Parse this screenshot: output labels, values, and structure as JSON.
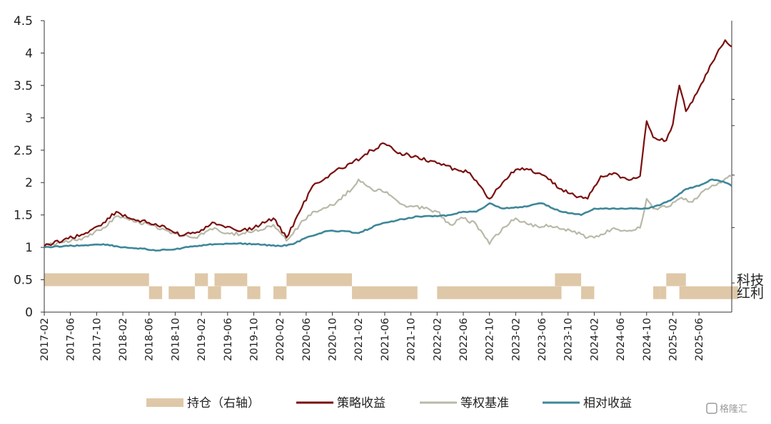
{
  "chart_data": {
    "type": "line",
    "title": "",
    "xlabel": "",
    "ylabel": "",
    "ylim": [
      0,
      4.5
    ],
    "yticks": [
      "0",
      "0.5",
      "1",
      "1.5",
      "2",
      "2.5",
      "3",
      "3.5",
      "4",
      "4.5"
    ],
    "x_range": [
      "2017-02",
      "2025-11"
    ],
    "x_ticks": [
      "2017-02",
      "2017-06",
      "2017-10",
      "2018-02",
      "2018-06",
      "2018-10",
      "2019-02",
      "2019-06",
      "2019-10",
      "2020-02",
      "2020-06",
      "2020-10",
      "2021-02",
      "2021-06",
      "2021-10",
      "2022-02",
      "2022-06",
      "2022-10",
      "2023-02",
      "2023-06",
      "2023-10",
      "2024-02",
      "2024-06",
      "2024-10",
      "2025-02",
      "2025-06"
    ],
    "right_axis_labels": [
      "科技",
      "红利"
    ],
    "legend_position": "bottom",
    "legend": [
      {
        "key": "position",
        "label": "持仓（右轴）",
        "color": "#DFC8A8",
        "marker": "bar"
      },
      {
        "key": "strategy",
        "label": "策略收益",
        "color": "#7A0E0E",
        "marker": "line"
      },
      {
        "key": "benchmark",
        "label": "等权基准",
        "color": "#B9B9A8",
        "marker": "line"
      },
      {
        "key": "relative",
        "label": "相对收益",
        "color": "#3E8799",
        "marker": "line"
      }
    ],
    "series": [
      {
        "key": "strategy",
        "name": "策略收益",
        "color": "#7A0E0E",
        "points": [
          [
            "2017-02",
            1.02
          ],
          [
            "2017-05",
            1.12
          ],
          [
            "2017-08",
            1.2
          ],
          [
            "2017-11",
            1.38
          ],
          [
            "2018-01",
            1.55
          ],
          [
            "2018-03",
            1.45
          ],
          [
            "2018-06",
            1.38
          ],
          [
            "2018-09",
            1.28
          ],
          [
            "2018-11",
            1.18
          ],
          [
            "2019-01",
            1.22
          ],
          [
            "2019-04",
            1.38
          ],
          [
            "2019-06",
            1.32
          ],
          [
            "2019-08",
            1.25
          ],
          [
            "2019-10",
            1.3
          ],
          [
            "2020-01",
            1.45
          ],
          [
            "2020-03",
            1.15
          ],
          [
            "2020-05",
            1.55
          ],
          [
            "2020-07",
            1.95
          ],
          [
            "2020-10",
            2.15
          ],
          [
            "2021-01",
            2.3
          ],
          [
            "2021-04",
            2.5
          ],
          [
            "2021-06",
            2.6
          ],
          [
            "2021-08",
            2.45
          ],
          [
            "2021-11",
            2.4
          ],
          [
            "2022-02",
            2.3
          ],
          [
            "2022-05",
            2.2
          ],
          [
            "2022-07",
            2.15
          ],
          [
            "2022-10",
            1.75
          ],
          [
            "2022-12",
            2.0
          ],
          [
            "2023-02",
            2.2
          ],
          [
            "2023-04",
            2.2
          ],
          [
            "2023-07",
            2.05
          ],
          [
            "2023-09",
            1.9
          ],
          [
            "2023-11",
            1.8
          ],
          [
            "2024-01",
            1.75
          ],
          [
            "2024-03",
            2.1
          ],
          [
            "2024-05",
            2.15
          ],
          [
            "2024-07",
            2.05
          ],
          [
            "2024-09",
            2.1
          ],
          [
            "2024-10",
            2.95
          ],
          [
            "2024-11",
            2.7
          ],
          [
            "2025-01",
            2.65
          ],
          [
            "2025-02",
            2.9
          ],
          [
            "2025-03",
            3.5
          ],
          [
            "2025-04",
            3.1
          ],
          [
            "2025-06",
            3.45
          ],
          [
            "2025-08",
            3.85
          ],
          [
            "2025-10",
            4.2
          ],
          [
            "2025-11",
            4.1
          ]
        ]
      },
      {
        "key": "benchmark",
        "name": "等权基准",
        "color": "#B9B9A8",
        "points": [
          [
            "2017-02",
            1.02
          ],
          [
            "2017-05",
            1.08
          ],
          [
            "2017-08",
            1.15
          ],
          [
            "2017-11",
            1.3
          ],
          [
            "2018-01",
            1.48
          ],
          [
            "2018-03",
            1.42
          ],
          [
            "2018-06",
            1.35
          ],
          [
            "2018-09",
            1.25
          ],
          [
            "2018-11",
            1.18
          ],
          [
            "2019-01",
            1.15
          ],
          [
            "2019-04",
            1.3
          ],
          [
            "2019-06",
            1.22
          ],
          [
            "2019-08",
            1.2
          ],
          [
            "2019-10",
            1.25
          ],
          [
            "2020-01",
            1.35
          ],
          [
            "2020-03",
            1.1
          ],
          [
            "2020-05",
            1.35
          ],
          [
            "2020-07",
            1.55
          ],
          [
            "2020-10",
            1.65
          ],
          [
            "2021-01",
            1.9
          ],
          [
            "2021-02",
            2.05
          ],
          [
            "2021-04",
            1.9
          ],
          [
            "2021-06",
            1.85
          ],
          [
            "2021-09",
            1.65
          ],
          [
            "2021-12",
            1.6
          ],
          [
            "2022-02",
            1.55
          ],
          [
            "2022-04",
            1.35
          ],
          [
            "2022-06",
            1.45
          ],
          [
            "2022-08",
            1.35
          ],
          [
            "2022-10",
            1.05
          ],
          [
            "2022-12",
            1.3
          ],
          [
            "2023-02",
            1.45
          ],
          [
            "2023-04",
            1.35
          ],
          [
            "2023-07",
            1.32
          ],
          [
            "2023-09",
            1.28
          ],
          [
            "2023-11",
            1.25
          ],
          [
            "2024-01",
            1.15
          ],
          [
            "2024-03",
            1.2
          ],
          [
            "2024-05",
            1.3
          ],
          [
            "2024-07",
            1.25
          ],
          [
            "2024-09",
            1.3
          ],
          [
            "2024-10",
            1.75
          ],
          [
            "2024-11",
            1.6
          ],
          [
            "2025-01",
            1.62
          ],
          [
            "2025-03",
            1.75
          ],
          [
            "2025-05",
            1.7
          ],
          [
            "2025-07",
            1.9
          ],
          [
            "2025-09",
            2.0
          ],
          [
            "2025-11",
            2.1
          ]
        ]
      },
      {
        "key": "relative",
        "name": "相对收益",
        "color": "#3E8799",
        "points": [
          [
            "2017-02",
            1.0
          ],
          [
            "2017-05",
            1.02
          ],
          [
            "2017-08",
            1.03
          ],
          [
            "2017-11",
            1.05
          ],
          [
            "2018-02",
            1.0
          ],
          [
            "2018-05",
            0.98
          ],
          [
            "2018-07",
            0.95
          ],
          [
            "2018-10",
            0.97
          ],
          [
            "2019-01",
            1.02
          ],
          [
            "2019-04",
            1.05
          ],
          [
            "2019-07",
            1.06
          ],
          [
            "2019-10",
            1.05
          ],
          [
            "2020-02",
            1.02
          ],
          [
            "2020-04",
            1.05
          ],
          [
            "2020-06",
            1.15
          ],
          [
            "2020-09",
            1.25
          ],
          [
            "2020-12",
            1.25
          ],
          [
            "2021-02",
            1.22
          ],
          [
            "2021-05",
            1.35
          ],
          [
            "2021-08",
            1.42
          ],
          [
            "2021-11",
            1.48
          ],
          [
            "2022-02",
            1.48
          ],
          [
            "2022-04",
            1.5
          ],
          [
            "2022-06",
            1.55
          ],
          [
            "2022-08",
            1.55
          ],
          [
            "2022-10",
            1.68
          ],
          [
            "2022-12",
            1.6
          ],
          [
            "2023-03",
            1.62
          ],
          [
            "2023-06",
            1.68
          ],
          [
            "2023-09",
            1.55
          ],
          [
            "2023-12",
            1.5
          ],
          [
            "2024-02",
            1.6
          ],
          [
            "2024-06",
            1.6
          ],
          [
            "2024-10",
            1.6
          ],
          [
            "2024-12",
            1.65
          ],
          [
            "2025-02",
            1.75
          ],
          [
            "2025-04",
            1.9
          ],
          [
            "2025-06",
            1.95
          ],
          [
            "2025-08",
            2.05
          ],
          [
            "2025-10",
            2.0
          ],
          [
            "2025-11",
            1.95
          ]
        ]
      }
    ],
    "position_segments": [
      {
        "label": "科技",
        "level": 0.5,
        "periods": [
          [
            "2017-02",
            "2018-05"
          ],
          [
            "2019-01",
            "2019-02"
          ],
          [
            "2019-04",
            "2019-08"
          ],
          [
            "2020-03",
            "2020-12"
          ],
          [
            "2023-08",
            "2023-11"
          ],
          [
            "2025-01",
            "2025-03"
          ]
        ]
      },
      {
        "label": "红利",
        "level": 0.3,
        "periods": [
          [
            "2018-06",
            "2018-07"
          ],
          [
            "2018-09",
            "2018-12"
          ],
          [
            "2019-03",
            "2019-04"
          ],
          [
            "2019-09",
            "2019-10"
          ],
          [
            "2020-01",
            "2020-02"
          ],
          [
            "2021-01",
            "2021-10"
          ],
          [
            "2022-02",
            "2023-08"
          ],
          [
            "2023-12",
            "2024-01"
          ],
          [
            "2024-11",
            "2024-11"
          ],
          [
            "2024-12",
            "2024-12"
          ],
          [
            "2025-03",
            "2025-11"
          ]
        ]
      }
    ]
  },
  "watermark": "格隆汇"
}
